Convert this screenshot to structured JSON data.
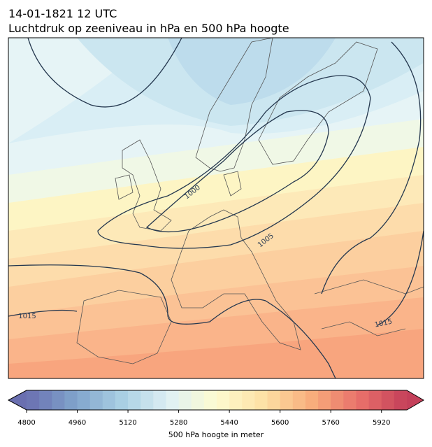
{
  "header": {
    "time": "14-01-1821 12 UTC",
    "title": "Luchtdruk op zeeniveau in hPa en 500 hPa hoogte"
  },
  "contour_labels": [
    1000,
    1005,
    1015,
    1015
  ],
  "colorbar": {
    "label": "500 hPa hoogte in meter",
    "lim": [
      4800,
      6000
    ],
    "ticks": [
      4800,
      4960,
      5120,
      5280,
      5440,
      5600,
      5760,
      5920
    ]
  }
}
